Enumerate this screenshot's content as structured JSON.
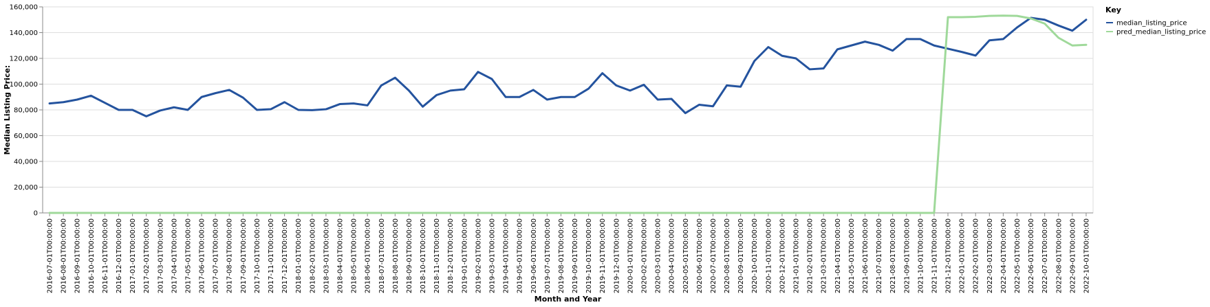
{
  "chart_data": {
    "type": "line",
    "title": "",
    "xlabel": "Month and Year",
    "ylabel": "Median Listing Price:",
    "ylim": [
      0,
      160000
    ],
    "yticks": [
      "0",
      "20,000",
      "40,000",
      "60,000",
      "80,000",
      "100,000",
      "120,000",
      "140,000",
      "160,000"
    ],
    "grid": true,
    "legend": {
      "title": "Key",
      "position": "top-right"
    },
    "categories": [
      "2016-07-01T00:00:00",
      "2016-08-01T00:00:00",
      "2016-09-01T00:00:00",
      "2016-10-01T00:00:00",
      "2016-11-01T00:00:00",
      "2016-12-01T00:00:00",
      "2017-01-01T00:00:00",
      "2017-02-01T00:00:00",
      "2017-03-01T00:00:00",
      "2017-04-01T00:00:00",
      "2017-05-01T00:00:00",
      "2017-06-01T00:00:00",
      "2017-07-01T00:00:00",
      "2017-08-01T00:00:00",
      "2017-09-01T00:00:00",
      "2017-10-01T00:00:00",
      "2017-11-01T00:00:00",
      "2017-12-01T00:00:00",
      "2018-01-01T00:00:00",
      "2018-02-01T00:00:00",
      "2018-03-01T00:00:00",
      "2018-04-01T00:00:00",
      "2018-05-01T00:00:00",
      "2018-06-01T00:00:00",
      "2018-07-01T00:00:00",
      "2018-08-01T00:00:00",
      "2018-09-01T00:00:00",
      "2018-10-01T00:00:00",
      "2018-11-01T00:00:00",
      "2018-12-01T00:00:00",
      "2019-01-01T00:00:00",
      "2019-02-01T00:00:00",
      "2019-03-01T00:00:00",
      "2019-04-01T00:00:00",
      "2019-05-01T00:00:00",
      "2019-06-01T00:00:00",
      "2019-07-01T00:00:00",
      "2019-08-01T00:00:00",
      "2019-09-01T00:00:00",
      "2019-10-01T00:00:00",
      "2019-11-01T00:00:00",
      "2019-12-01T00:00:00",
      "2020-01-01T00:00:00",
      "2020-02-01T00:00:00",
      "2020-03-01T00:00:00",
      "2020-04-01T00:00:00",
      "2020-05-01T00:00:00",
      "2020-06-01T00:00:00",
      "2020-07-01T00:00:00",
      "2020-08-01T00:00:00",
      "2020-09-01T00:00:00",
      "2020-10-01T00:00:00",
      "2020-11-01T00:00:00",
      "2020-12-01T00:00:00",
      "2021-01-01T00:00:00",
      "2021-02-01T00:00:00",
      "2021-03-01T00:00:00",
      "2021-04-01T00:00:00",
      "2021-05-01T00:00:00",
      "2021-06-01T00:00:00",
      "2021-07-01T00:00:00",
      "2021-08-01T00:00:00",
      "2021-09-01T00:00:00",
      "2021-10-01T00:00:00",
      "2021-11-01T00:00:00",
      "2021-12-01T00:00:00",
      "2022-01-01T00:00:00",
      "2022-02-01T00:00:00",
      "2022-03-01T00:00:00",
      "2022-04-01T00:00:00",
      "2022-05-01T00:00:00",
      "2022-06-01T00:00:00",
      "2022-07-01T00:00:00",
      "2022-08-01T00:00:00",
      "2022-09-01T00:00:00",
      "2022-10-01T00:00:00"
    ],
    "series": [
      {
        "name": "median_listing_price",
        "color": "#24539e",
        "values": [
          85000,
          86000,
          88000,
          91000,
          85500,
          80000,
          80000,
          75000,
          79500,
          82000,
          80000,
          90000,
          93000,
          95500,
          89500,
          80000,
          80500,
          86000,
          80000,
          79800,
          80500,
          84500,
          85000,
          83500,
          99000,
          105000,
          95000,
          82500,
          91500,
          95000,
          96000,
          109500,
          104000,
          90000,
          90000,
          95500,
          88000,
          90000,
          90000,
          96500,
          108500,
          99000,
          95000,
          99500,
          88000,
          88500,
          77500,
          84000,
          82800,
          99000,
          98000,
          118000,
          128800,
          122000,
          120000,
          111500,
          112200,
          127000,
          130000,
          133000,
          130500,
          126000,
          135000,
          135000,
          130000,
          127500,
          125000,
          122200,
          134000,
          135000,
          144000,
          151500,
          150000,
          145500,
          141500,
          150000
        ]
      },
      {
        "name": "pred_median_listing_price",
        "color": "#9fd99a",
        "values": [
          0,
          0,
          0,
          0,
          0,
          0,
          0,
          0,
          0,
          0,
          0,
          0,
          0,
          0,
          0,
          0,
          0,
          0,
          0,
          0,
          0,
          0,
          0,
          0,
          0,
          0,
          0,
          0,
          0,
          0,
          0,
          0,
          0,
          0,
          0,
          0,
          0,
          0,
          0,
          0,
          0,
          0,
          0,
          0,
          0,
          0,
          0,
          0,
          0,
          0,
          0,
          0,
          0,
          0,
          0,
          0,
          0,
          0,
          0,
          0,
          0,
          0,
          0,
          0,
          0,
          152000,
          152000,
          152300,
          153000,
          153200,
          153000,
          151000,
          147000,
          136000,
          130000,
          130500
        ]
      }
    ]
  }
}
